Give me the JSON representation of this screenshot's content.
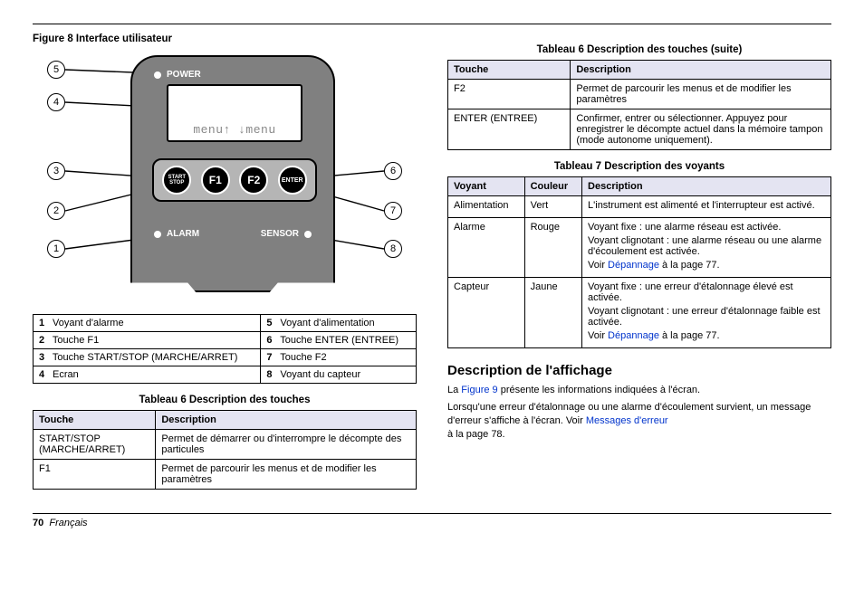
{
  "left": {
    "figure_title": "Figure 8  Interface utilisateur",
    "diagram": {
      "power_label": "POWER",
      "screen_text": "menu↑  ↓menu",
      "buttons": {
        "start_stop": "START\nSTOP",
        "f1": "F1",
        "f2": "F2",
        "enter": "ENTER"
      },
      "alarm_label": "ALARM",
      "sensor_label": "SENSOR",
      "callouts": [
        "1",
        "2",
        "3",
        "4",
        "5",
        "6",
        "7",
        "8"
      ]
    },
    "legend_rows": [
      [
        "1",
        "Voyant d'alarme",
        "5",
        "Voyant d'alimentation"
      ],
      [
        "2",
        "Touche F1",
        "6",
        "Touche ENTER (ENTREE)"
      ],
      [
        "3",
        "Touche START/STOP (MARCHE/ARRET)",
        "7",
        "Touche F2"
      ],
      [
        "4",
        "Ecran",
        "8",
        "Voyant du capteur"
      ]
    ],
    "table6_title": "Tableau 6  Description des touches",
    "table6": {
      "headers": [
        "Touche",
        "Description"
      ],
      "rows": [
        [
          "START/STOP (MARCHE/ARRET)",
          "Permet de démarrer ou d'interrompre le décompte des particules"
        ],
        [
          "F1",
          "Permet de parcourir les menus et de modifier les paramètres"
        ]
      ]
    }
  },
  "right": {
    "table6b_title": "Tableau 6  Description des touches (suite)",
    "table6b": {
      "headers": [
        "Touche",
        "Description"
      ],
      "rows": [
        [
          "F2",
          "Permet de parcourir les menus et de modifier les paramètres"
        ],
        [
          "ENTER (ENTREE)",
          "Confirmer, entrer ou sélectionner. Appuyez pour enregistrer le décompte actuel dans la mémoire tampon (mode autonome uniquement)."
        ]
      ]
    },
    "table7_title": "Tableau 7  Description des voyants",
    "table7": {
      "headers": [
        "Voyant",
        "Couleur",
        "Description"
      ],
      "rows": [
        {
          "c0": "Alimentation",
          "c1": "Vert",
          "c2": [
            "L'instrument est alimenté et l'interrupteur est activé."
          ]
        },
        {
          "c0": "Alarme",
          "c1": "Rouge",
          "c2": [
            "Voyant fixe : une alarme réseau est activée.",
            "Voyant clignotant : une alarme réseau ou une alarme d'écoulement est activée."
          ],
          "link": "Dépannage",
          "suffix": " à la page 77."
        },
        {
          "c0": "Capteur",
          "c1": "Jaune",
          "c2": [
            "Voyant fixe : une erreur d'étalonnage élevé est activée.",
            "Voyant clignotant : une erreur d'étalonnage faible est activée."
          ],
          "link": "Dépannage",
          "suffix": " à la page 77."
        }
      ]
    },
    "section_title": "Description de l'affichage",
    "para1_pre": "La ",
    "para1_link": "Figure 9",
    "para1_post": " présente les informations indiquées à l'écran.",
    "para2_pre": "Lorsqu'une erreur d'étalonnage ou une alarme d'écoulement survient, un message d'erreur s'affiche à l'écran. Voir ",
    "para2_link": "Messages d'erreur",
    "para2_post": " à la page 78."
  },
  "footer": {
    "page": "70",
    "lang": "Français"
  }
}
